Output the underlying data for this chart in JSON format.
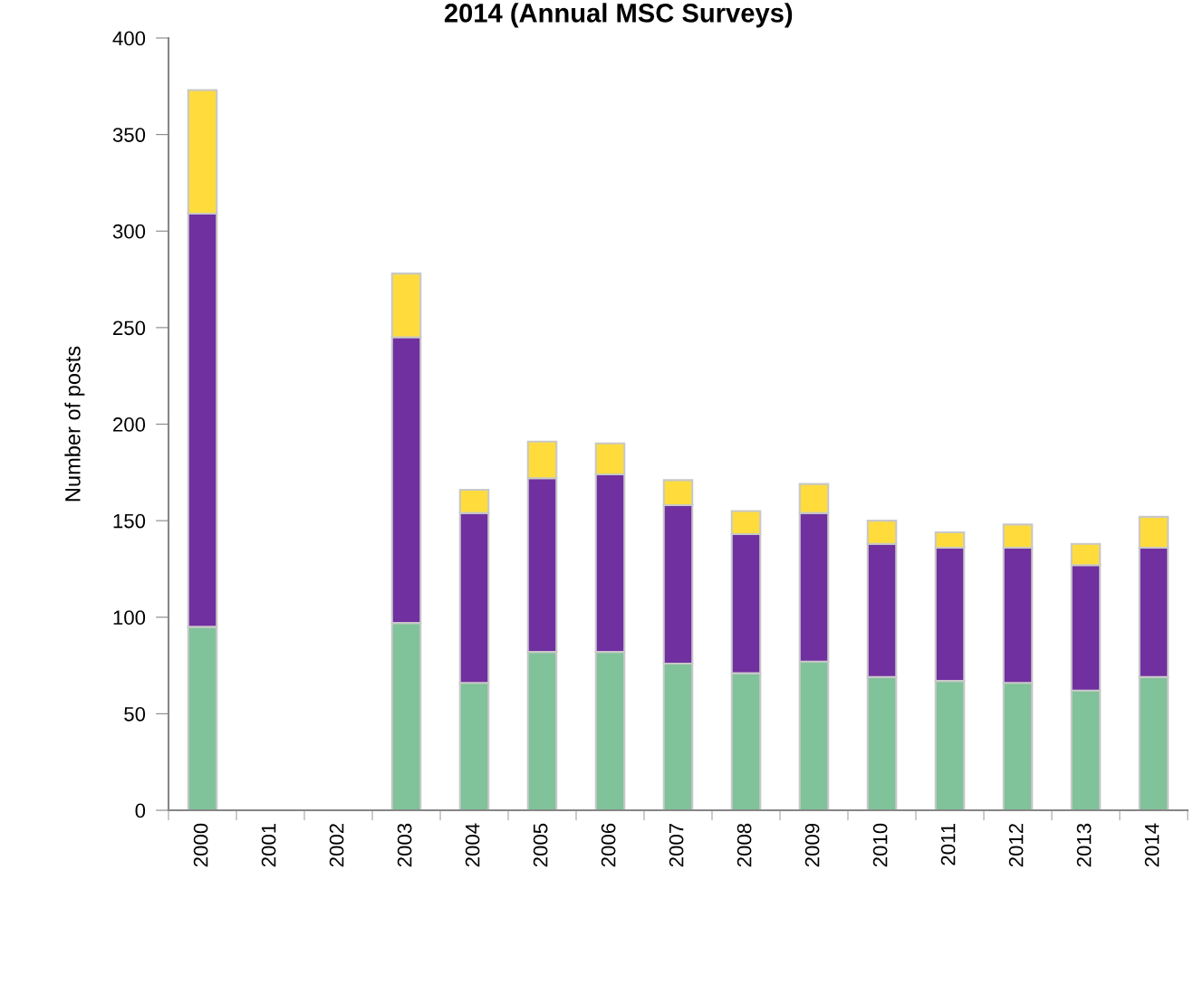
{
  "chart_data": {
    "type": "bar",
    "title": "2014 (Annual MSC Surveys)",
    "ylabel": "Number of posts",
    "categories": [
      "2000",
      "2001",
      "2002",
      "2003",
      "2004",
      "2005",
      "2006",
      "2007",
      "2008",
      "2009",
      "2010",
      "2011",
      "2012",
      "2013",
      "2014"
    ],
    "stacked": true,
    "series": [
      {
        "color": "#80c29a",
        "values": [
          95,
          null,
          null,
          97,
          66,
          82,
          82,
          76,
          71,
          77,
          69,
          67,
          66,
          62,
          69
        ]
      },
      {
        "color": "#7030a0",
        "values": [
          214,
          null,
          null,
          148,
          88,
          90,
          92,
          82,
          72,
          77,
          69,
          69,
          70,
          65,
          67
        ]
      },
      {
        "color": "#ffdc3c",
        "values": [
          64,
          null,
          null,
          33,
          12,
          19,
          16,
          13,
          12,
          15,
          12,
          8,
          12,
          11,
          16
        ]
      }
    ],
    "ylim": [
      0,
      400
    ],
    "yticks": [
      0,
      50,
      100,
      150,
      200,
      250,
      300,
      350,
      400
    ]
  }
}
